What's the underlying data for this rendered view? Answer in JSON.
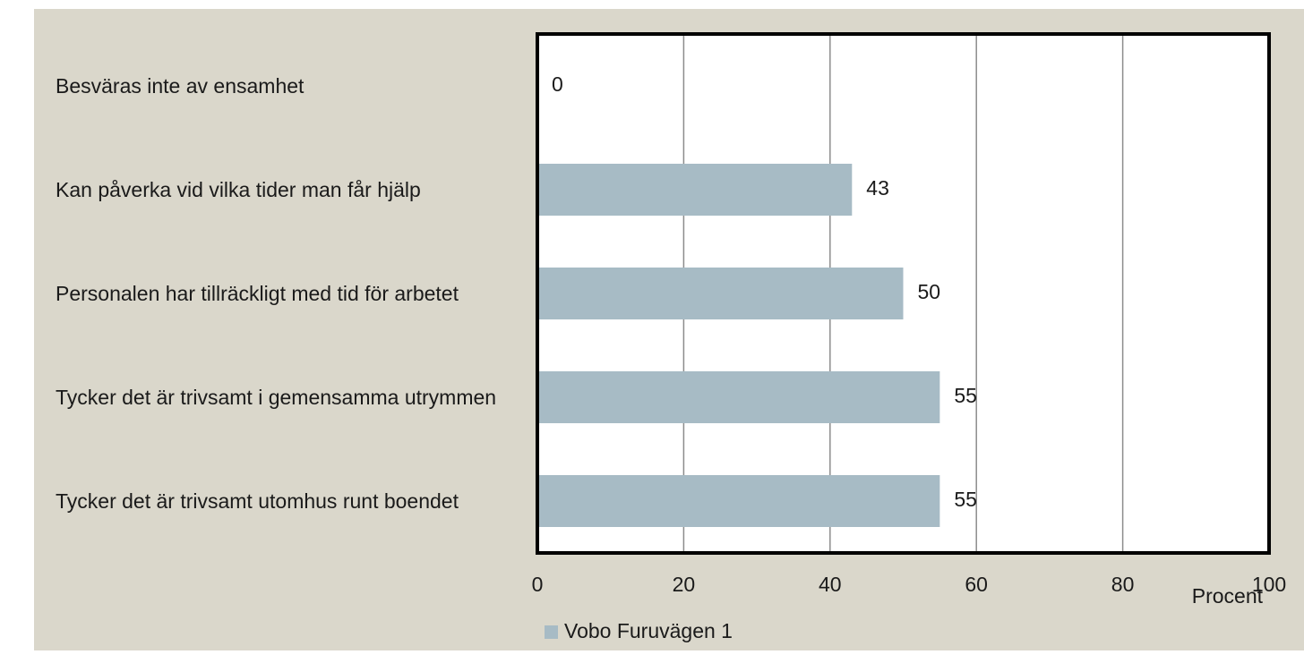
{
  "chart_data": {
    "type": "bar",
    "orientation": "horizontal",
    "categories": [
      "Besväras inte av ensamhet",
      "Kan påverka vid vilka tider man får hjälp",
      "Personalen har tillräckligt med tid för arbetet",
      "Tycker det är trivsamt i gemensamma utrymmen",
      "Tycker det är trivsamt utomhus runt boendet"
    ],
    "series": [
      {
        "name": "Vobo Furuvägen 1",
        "color": "#a7bbc5",
        "values": [
          0,
          43,
          50,
          55,
          55
        ]
      }
    ],
    "xlim": [
      0,
      100
    ],
    "xticks": [
      0,
      20,
      40,
      60,
      80,
      100
    ],
    "xlabel": "Procent",
    "grid": true,
    "legend": "bottom"
  }
}
